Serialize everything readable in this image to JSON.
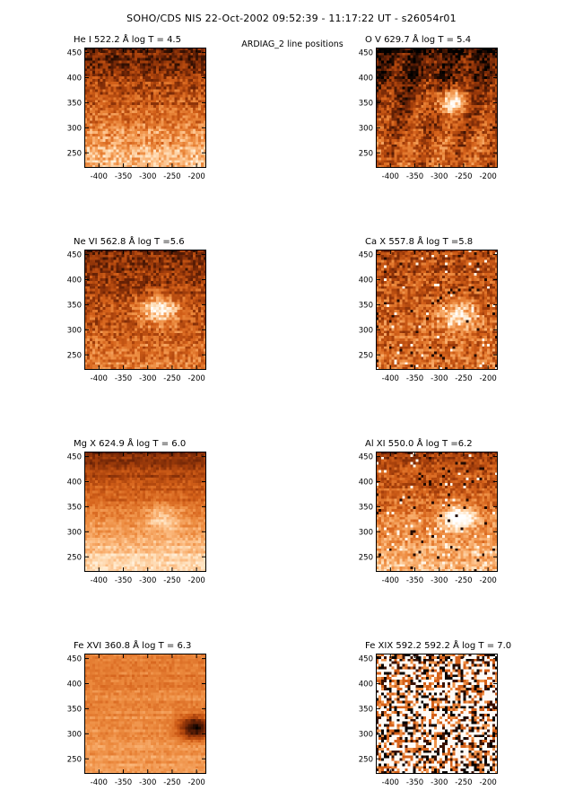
{
  "figure": {
    "title": "SOHO/CDS NIS  22-Oct-2002 09:52:39 - 11:17:22 UT - s26054r01",
    "subtitle": "ARDIAG_2 line positions"
  },
  "colors": {
    "background": "#ffffff",
    "colormap": [
      "#ffffff",
      "#ffe6c6",
      "#fbb77a",
      "#ec8a3e",
      "#d4611a",
      "#a7400b",
      "#6e2406",
      "#2e0e02",
      "#000000"
    ]
  },
  "chart_data": [
    {
      "type": "heatmap",
      "title": "He I  522.2 Å log T = 4.5",
      "xlim": [
        -430,
        -180
      ],
      "ylim": [
        220,
        460
      ],
      "x_ticks": [
        -400,
        -350,
        -300,
        -250,
        -200
      ],
      "y_ticks": [
        250,
        300,
        350,
        400,
        450
      ],
      "x_tick_labels": [
        "-400",
        "-350",
        "-300",
        "-250",
        "-200"
      ],
      "y_tick_labels": [
        "250",
        "300",
        "350",
        "400",
        "450"
      ]
    },
    {
      "type": "heatmap",
      "title": "O V  629.7 Å log T = 5.4",
      "xlim": [
        -430,
        -180
      ],
      "ylim": [
        220,
        460
      ],
      "x_ticks": [
        -400,
        -350,
        -300,
        -250,
        -200
      ],
      "y_ticks": [
        250,
        300,
        350,
        400,
        450
      ],
      "x_tick_labels": [
        "-400",
        "-350",
        "-300",
        "-250",
        "-200"
      ],
      "y_tick_labels": [
        "250",
        "300",
        "350",
        "400",
        "450"
      ]
    },
    {
      "type": "heatmap",
      "title": "Ne VI  562.8 Å log T =5.6",
      "xlim": [
        -430,
        -180
      ],
      "ylim": [
        220,
        460
      ],
      "x_ticks": [
        -400,
        -350,
        -300,
        -250,
        -200
      ],
      "y_ticks": [
        250,
        300,
        350,
        400,
        450
      ],
      "x_tick_labels": [
        "-400",
        "-350",
        "-300",
        "-250",
        "-200"
      ],
      "y_tick_labels": [
        "250",
        "300",
        "350",
        "400",
        "450"
      ]
    },
    {
      "type": "heatmap",
      "title": "Ca X  557.8 Å log T =5.8",
      "xlim": [
        -430,
        -180
      ],
      "ylim": [
        220,
        460
      ],
      "x_ticks": [
        -400,
        -350,
        -300,
        -250,
        -200
      ],
      "y_ticks": [
        250,
        300,
        350,
        400,
        450
      ],
      "x_tick_labels": [
        "-400",
        "-350",
        "-300",
        "-250",
        "-200"
      ],
      "y_tick_labels": [
        "250",
        "300",
        "350",
        "400",
        "450"
      ]
    },
    {
      "type": "heatmap",
      "title": "Mg X  624.9 Å log T = 6.0",
      "xlim": [
        -430,
        -180
      ],
      "ylim": [
        220,
        460
      ],
      "x_ticks": [
        -400,
        -350,
        -300,
        -250,
        -200
      ],
      "y_ticks": [
        250,
        300,
        350,
        400,
        450
      ],
      "x_tick_labels": [
        "-400",
        "-350",
        "-300",
        "-250",
        "-200"
      ],
      "y_tick_labels": [
        "250",
        "300",
        "350",
        "400",
        "450"
      ]
    },
    {
      "type": "heatmap",
      "title": "Al XI  550.0 Å log T =6.2",
      "xlim": [
        -430,
        -180
      ],
      "ylim": [
        220,
        460
      ],
      "x_ticks": [
        -400,
        -350,
        -300,
        -250,
        -200
      ],
      "y_ticks": [
        250,
        300,
        350,
        400,
        450
      ],
      "x_tick_labels": [
        "-400",
        "-350",
        "-300",
        "-250",
        "-200"
      ],
      "y_tick_labels": [
        "250",
        "300",
        "350",
        "400",
        "450"
      ]
    },
    {
      "type": "heatmap",
      "title": "Fe XVI  360.8 Å log T = 6.3",
      "xlim": [
        -430,
        -180
      ],
      "ylim": [
        220,
        460
      ],
      "x_ticks": [
        -400,
        -350,
        -300,
        -250,
        -200
      ],
      "y_ticks": [
        250,
        300,
        350,
        400,
        450
      ],
      "x_tick_labels": [
        "-400",
        "-350",
        "-300",
        "-250",
        "-200"
      ],
      "y_tick_labels": [
        "250",
        "300",
        "350",
        "400",
        "450"
      ]
    },
    {
      "type": "heatmap",
      "title": "Fe XIX 592.2  592.2 Å log T = 7.0",
      "xlim": [
        -430,
        -180
      ],
      "ylim": [
        220,
        460
      ],
      "x_ticks": [
        -400,
        -350,
        -300,
        -250,
        -200
      ],
      "y_ticks": [
        250,
        300,
        350,
        400,
        450
      ],
      "x_tick_labels": [
        "-400",
        "-350",
        "-300",
        "-250",
        "-200"
      ],
      "y_tick_labels": [
        "250",
        "300",
        "350",
        "400",
        "450"
      ]
    }
  ]
}
